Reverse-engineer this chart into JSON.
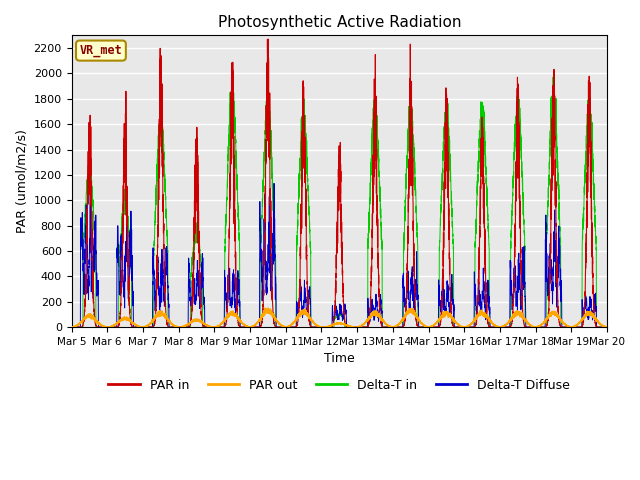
{
  "title": "Photosynthetic Active Radiation",
  "ylabel": "PAR (umol/m2/s)",
  "xlabel": "Time",
  "ylim": [
    0,
    2300
  ],
  "yticks": [
    0,
    200,
    400,
    600,
    800,
    1000,
    1200,
    1400,
    1600,
    1800,
    2000,
    2200
  ],
  "plot_bg_color": "#e8e8e8",
  "legend_items": [
    "PAR in",
    "PAR out",
    "Delta-T in",
    "Delta-T Diffuse"
  ],
  "legend_colors": [
    "#cc0000",
    "#ffa500",
    "#00cc00",
    "#0000cc"
  ],
  "label_text": "VR_met",
  "label_bg": "#ffffcc",
  "label_border": "#aa8800",
  "label_text_color": "#880000",
  "days_start": 5,
  "days_end": 20,
  "xtick_days": [
    5,
    6,
    7,
    8,
    9,
    10,
    11,
    12,
    13,
    14,
    15,
    16,
    17,
    18,
    19,
    20
  ],
  "xtick_labels": [
    "Mar 5",
    "Mar 6",
    "Mar 7",
    "Mar 8",
    "Mar 9",
    "Mar 10",
    "Mar 11",
    "Mar 12",
    "Mar 13",
    "Mar 14",
    "Mar 15",
    "Mar 16",
    "Mar 17",
    "Mar 18",
    "Mar 19",
    "Mar 20"
  ],
  "n_pts_per_day": 480
}
